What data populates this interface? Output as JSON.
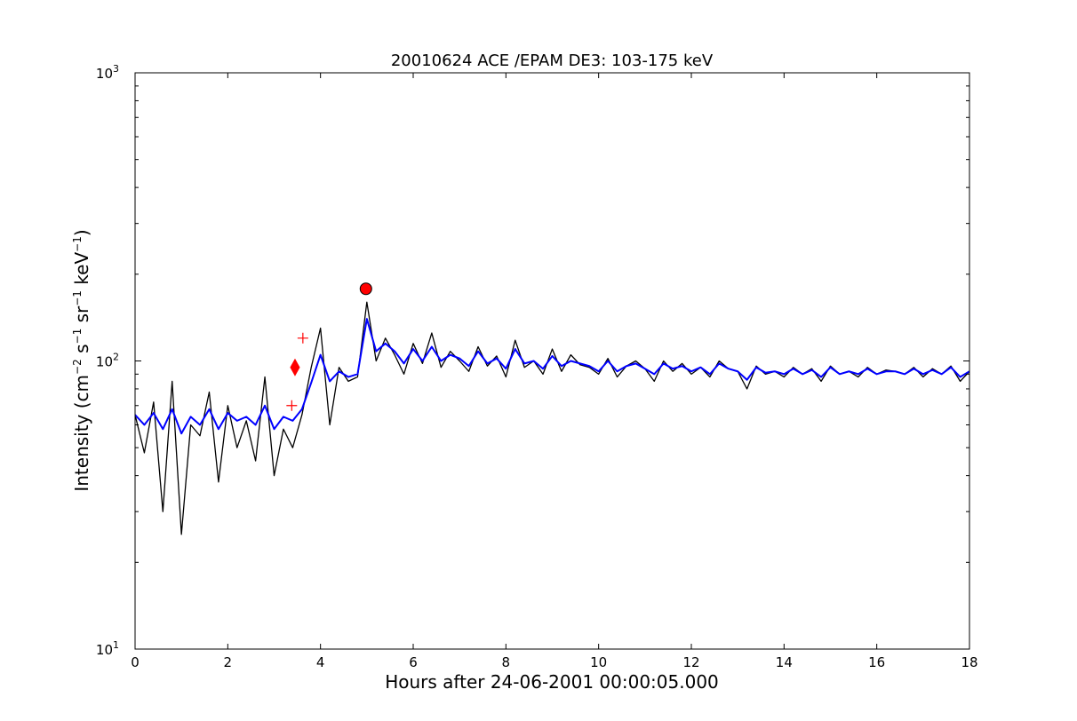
{
  "chart_data": {
    "type": "line",
    "title": "20010624 ACE /EPAM DE3: 103-175 keV",
    "xlabel": "Hours after 24-06-2001 00:00:05.000",
    "ylabel_main": "Intensity (cm",
    "ylabel_sup1": "−2",
    "ylabel_mid1": " s",
    "ylabel_sup2": "−1",
    "ylabel_mid2": " sr",
    "ylabel_sup3": "−1",
    "ylabel_mid3": " keV",
    "ylabel_sup4": "−1",
    "ylabel_end": ")",
    "xlim": [
      0,
      18
    ],
    "ylim": [
      10,
      1000
    ],
    "yscale": "log",
    "grid": false,
    "x_ticks": [
      0,
      2,
      4,
      6,
      8,
      10,
      12,
      14,
      16,
      18
    ],
    "x_tick_labels": [
      "0",
      "2",
      "4",
      "6",
      "8",
      "10",
      "12",
      "14",
      "16",
      "18"
    ],
    "y_ticks": [
      10,
      100,
      1000
    ],
    "y_tick_labels": [
      {
        "base": "10",
        "exp": "1"
      },
      {
        "base": "10",
        "exp": "2"
      },
      {
        "base": "10",
        "exp": "3"
      }
    ],
    "series": [
      {
        "role": "raw",
        "color": "#000000",
        "x": [
          0.0,
          0.2,
          0.4,
          0.6,
          0.8,
          1.0,
          1.2,
          1.4,
          1.6,
          1.8,
          2.0,
          2.2,
          2.4,
          2.6,
          2.8,
          3.0,
          3.2,
          3.4,
          3.6,
          3.8,
          4.0,
          4.2,
          4.4,
          4.6,
          4.8,
          5.0,
          5.2,
          5.4,
          5.6,
          5.8,
          6.0,
          6.2,
          6.4,
          6.6,
          6.8,
          7.0,
          7.2,
          7.4,
          7.6,
          7.8,
          8.0,
          8.2,
          8.4,
          8.6,
          8.8,
          9.0,
          9.2,
          9.4,
          9.6,
          9.8,
          10.0,
          10.2,
          10.4,
          10.6,
          10.8,
          11.0,
          11.2,
          11.4,
          11.6,
          11.8,
          12.0,
          12.2,
          12.4,
          12.6,
          12.8,
          13.0,
          13.2,
          13.4,
          13.6,
          13.8,
          14.0,
          14.2,
          14.4,
          14.6,
          14.8,
          15.0,
          15.2,
          15.4,
          15.6,
          15.8,
          16.0,
          16.2,
          16.4,
          16.6,
          16.8,
          17.0,
          17.2,
          17.4,
          17.6,
          17.8,
          18.0
        ],
        "y": [
          65,
          48,
          72,
          30,
          85,
          25,
          60,
          55,
          78,
          38,
          70,
          50,
          62,
          45,
          88,
          40,
          58,
          50,
          65,
          95,
          130,
          60,
          95,
          85,
          88,
          160,
          100,
          120,
          105,
          90,
          115,
          98,
          125,
          95,
          108,
          100,
          92,
          112,
          96,
          104,
          88,
          118,
          95,
          100,
          90,
          110,
          92,
          105,
          97,
          95,
          90,
          102,
          88,
          96,
          100,
          94,
          85,
          100,
          92,
          98,
          90,
          95,
          88,
          100,
          94,
          92,
          80,
          96,
          90,
          92,
          88,
          95,
          90,
          94,
          85,
          96,
          90,
          92,
          88,
          95,
          90,
          93,
          92,
          90,
          95,
          88,
          94,
          90,
          96,
          85,
          92
        ]
      },
      {
        "role": "smoothed",
        "color": "#0000ff",
        "x": [
          0.0,
          0.2,
          0.4,
          0.6,
          0.8,
          1.0,
          1.2,
          1.4,
          1.6,
          1.8,
          2.0,
          2.2,
          2.4,
          2.6,
          2.8,
          3.0,
          3.2,
          3.4,
          3.6,
          3.8,
          4.0,
          4.2,
          4.4,
          4.6,
          4.8,
          5.0,
          5.2,
          5.4,
          5.6,
          5.8,
          6.0,
          6.2,
          6.4,
          6.6,
          6.8,
          7.0,
          7.2,
          7.4,
          7.6,
          7.8,
          8.0,
          8.2,
          8.4,
          8.6,
          8.8,
          9.0,
          9.2,
          9.4,
          9.6,
          9.8,
          10.0,
          10.2,
          10.4,
          10.6,
          10.8,
          11.0,
          11.2,
          11.4,
          11.6,
          11.8,
          12.0,
          12.2,
          12.4,
          12.6,
          12.8,
          13.0,
          13.2,
          13.4,
          13.6,
          13.8,
          14.0,
          14.2,
          14.4,
          14.6,
          14.8,
          15.0,
          15.2,
          15.4,
          15.6,
          15.8,
          16.0,
          16.2,
          16.4,
          16.6,
          16.8,
          17.0,
          17.2,
          17.4,
          17.6,
          17.8,
          18.0
        ],
        "y": [
          65,
          60,
          66,
          58,
          68,
          56,
          64,
          60,
          68,
          58,
          66,
          62,
          64,
          60,
          70,
          58,
          64,
          62,
          68,
          84,
          105,
          85,
          92,
          88,
          90,
          140,
          108,
          115,
          108,
          98,
          110,
          100,
          112,
          100,
          105,
          102,
          96,
          108,
          98,
          102,
          94,
          110,
          98,
          100,
          94,
          104,
          96,
          100,
          98,
          96,
          92,
          100,
          92,
          96,
          98,
          94,
          90,
          98,
          94,
          96,
          92,
          95,
          90,
          98,
          94,
          92,
          86,
          95,
          91,
          92,
          90,
          94,
          90,
          93,
          88,
          95,
          90,
          92,
          90,
          94,
          90,
          92,
          92,
          90,
          94,
          90,
          93,
          90,
          95,
          88,
          92
        ]
      }
    ],
    "markers": [
      {
        "shape": "plus",
        "color": "#ff0000",
        "x": 3.38,
        "y": 70
      },
      {
        "shape": "diamond",
        "color": "#ff0000",
        "x": 3.45,
        "y": 95
      },
      {
        "shape": "plus",
        "color": "#ff0000",
        "x": 3.62,
        "y": 120
      },
      {
        "shape": "circle",
        "color": "#ff0000",
        "x": 4.98,
        "y": 178
      }
    ]
  }
}
